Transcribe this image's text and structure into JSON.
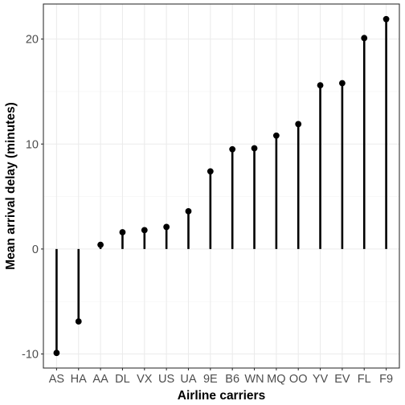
{
  "chart_data": {
    "type": "lollipop",
    "xlabel": "Airline carriers",
    "ylabel": "Mean arrival delay (minutes)",
    "categories": [
      "AS",
      "HA",
      "AA",
      "DL",
      "VX",
      "US",
      "UA",
      "9E",
      "B6",
      "WN",
      "MQ",
      "OO",
      "YV",
      "EV",
      "FL",
      "F9"
    ],
    "values": [
      -9.9,
      -6.9,
      0.4,
      1.6,
      1.8,
      2.1,
      3.6,
      7.4,
      9.5,
      9.6,
      10.8,
      11.9,
      15.6,
      15.8,
      20.1,
      21.9
    ],
    "ylim": [
      -11.34,
      23.34
    ],
    "yticks": [
      -10,
      0,
      10,
      20
    ],
    "ytick_labels": [
      "-10",
      "0",
      "10",
      "20"
    ],
    "grid": true,
    "legend": "none",
    "colors": {
      "panel_border": "#333333",
      "grid_major": "#ebebeb",
      "grid_minor": "#f5f5f5",
      "mark": "#000000",
      "tick_text": "#4d4d4d"
    }
  }
}
